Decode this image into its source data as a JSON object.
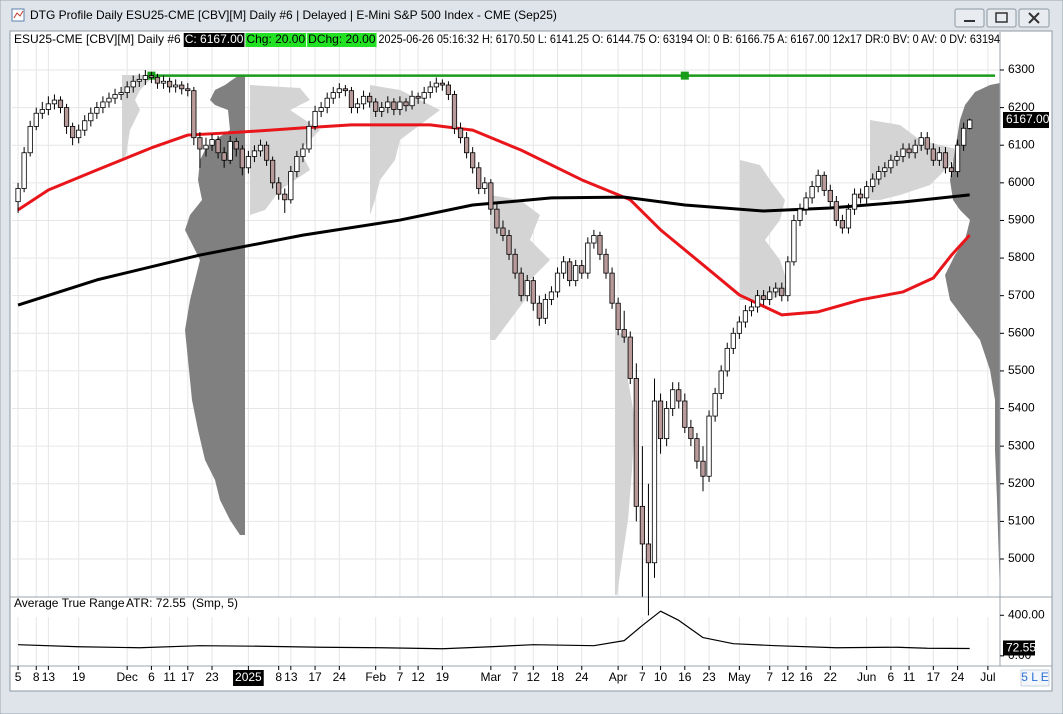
{
  "window": {
    "title": "DTG Profile Daily ESU25-CME [CBV][M]  Daily #6 | Delayed | E-Mini S&P 500 Index - CME (Sep25)",
    "status": "5 L E"
  },
  "header": {
    "symbol": "ESU25-CME [CBV][M]  Daily #6",
    "close": "C: 6167.00",
    "change": "Chg: 20.00",
    "dchange": "DChg: 20.00",
    "details": "2025-06-26 05:16:32 H: 6170.50 L: 6141.25 O: 6144.75 O: 63194 OI: 0 B: 6166.75 A: 6167.00 12x17 DR:0 BV: 0 AV: 0 DV: 63194"
  },
  "chart_data": [
    {
      "type": "candlestick",
      "ylim": [
        4899,
        6393
      ],
      "yticks": [
        6300,
        6200,
        6100,
        6000,
        5900,
        5800,
        5700,
        5600,
        5500,
        5400,
        5300,
        5200,
        5100,
        5000
      ],
      "xlim": [
        -1,
        162
      ],
      "xticks": [
        {
          "value": 0,
          "label": "5"
        },
        {
          "value": 3,
          "label": "8"
        },
        {
          "value": 5,
          "label": "13"
        },
        {
          "value": 10,
          "label": "19"
        },
        {
          "value": 18,
          "label": "Dec"
        },
        {
          "value": 22,
          "label": "6"
        },
        {
          "value": 25,
          "label": "11"
        },
        {
          "value": 28,
          "label": "17"
        },
        {
          "value": 32,
          "label": "23"
        },
        {
          "value": 38,
          "label": "2025",
          "style": "inverse"
        },
        {
          "value": 43,
          "label": "8"
        },
        {
          "value": 45,
          "label": "13"
        },
        {
          "value": 49,
          "label": "17"
        },
        {
          "value": 53,
          "label": "24"
        },
        {
          "value": 59,
          "label": "Feb"
        },
        {
          "value": 63,
          "label": "7"
        },
        {
          "value": 66,
          "label": "12"
        },
        {
          "value": 70,
          "label": "19"
        },
        {
          "value": 78,
          "label": "Mar"
        },
        {
          "value": 82,
          "label": "7"
        },
        {
          "value": 85,
          "label": "12"
        },
        {
          "value": 89,
          "label": "18"
        },
        {
          "value": 93,
          "label": "24"
        },
        {
          "value": 99,
          "label": "Apr"
        },
        {
          "value": 103,
          "label": "7"
        },
        {
          "value": 106,
          "label": "10"
        },
        {
          "value": 110,
          "label": "16"
        },
        {
          "value": 114,
          "label": "23"
        },
        {
          "value": 119,
          "label": "May"
        },
        {
          "value": 124,
          "label": "7"
        },
        {
          "value": 127,
          "label": "12"
        },
        {
          "value": 130,
          "label": "16"
        },
        {
          "value": 134,
          "label": "22"
        },
        {
          "value": 140,
          "label": "Jun"
        },
        {
          "value": 144,
          "label": "6"
        },
        {
          "value": 147,
          "label": "11"
        },
        {
          "value": 151,
          "label": "17"
        },
        {
          "value": 155,
          "label": "24"
        },
        {
          "value": 160,
          "label": "Jul"
        }
      ],
      "grid": true,
      "up_color": "#ffffff",
      "down_color": "#b99a9a",
      "candles": [
        [
          5950,
          6000,
          5920,
          5985
        ],
        [
          5985,
          6095,
          5975,
          6080
        ],
        [
          6080,
          6165,
          6070,
          6150
        ],
        [
          6150,
          6200,
          6140,
          6185
        ],
        [
          6185,
          6215,
          6170,
          6195
        ],
        [
          6195,
          6230,
          6180,
          6210
        ],
        [
          6210,
          6235,
          6195,
          6220
        ],
        [
          6220,
          6230,
          6185,
          6200
        ],
        [
          6200,
          6210,
          6130,
          6150
        ],
        [
          6150,
          6160,
          6100,
          6120
        ],
        [
          6120,
          6155,
          6105,
          6140
        ],
        [
          6140,
          6180,
          6125,
          6165
        ],
        [
          6165,
          6200,
          6150,
          6185
        ],
        [
          6185,
          6215,
          6170,
          6200
        ],
        [
          6200,
          6230,
          6185,
          6215
        ],
        [
          6215,
          6240,
          6200,
          6225
        ],
        [
          6225,
          6250,
          6210,
          6235
        ],
        [
          6235,
          6255,
          6220,
          6240
        ],
        [
          6240,
          6270,
          6225,
          6255
        ],
        [
          6255,
          6285,
          6240,
          6270
        ],
        [
          6270,
          6290,
          6255,
          6275
        ],
        [
          6275,
          6300,
          6260,
          6285
        ],
        [
          6285,
          6295,
          6265,
          6280
        ],
        [
          6280,
          6290,
          6250,
          6265
        ],
        [
          6265,
          6285,
          6250,
          6270
        ],
        [
          6270,
          6280,
          6240,
          6255
        ],
        [
          6255,
          6275,
          6240,
          6260
        ],
        [
          6260,
          6270,
          6235,
          6250
        ],
        [
          6250,
          6265,
          6230,
          6245
        ],
        [
          6245,
          6255,
          6100,
          6120
        ],
        [
          6120,
          6135,
          6040,
          6090
        ],
        [
          6090,
          6120,
          6070,
          6100
        ],
        [
          6100,
          6130,
          6085,
          6115
        ],
        [
          6115,
          6125,
          6065,
          6080
        ],
        [
          6080,
          6095,
          6040,
          6060
        ],
        [
          6060,
          6125,
          6050,
          6110
        ],
        [
          6110,
          6120,
          6070,
          6090
        ],
        [
          6090,
          6100,
          6020,
          6040
        ],
        [
          6040,
          6085,
          6025,
          6070
        ],
        [
          6070,
          6100,
          6055,
          6085
        ],
        [
          6085,
          6115,
          6070,
          6100
        ],
        [
          6100,
          6110,
          6045,
          6060
        ],
        [
          6060,
          6070,
          5985,
          6000
        ],
        [
          6000,
          6015,
          5955,
          5970
        ],
        [
          5970,
          5985,
          5920,
          5955
        ],
        [
          5955,
          6045,
          5945,
          6030
        ],
        [
          6030,
          6085,
          6015,
          6070
        ],
        [
          6070,
          6105,
          6055,
          6090
        ],
        [
          6090,
          6165,
          6080,
          6150
        ],
        [
          6150,
          6205,
          6140,
          6190
        ],
        [
          6190,
          6215,
          6175,
          6200
        ],
        [
          6200,
          6240,
          6185,
          6225
        ],
        [
          6225,
          6255,
          6210,
          6240
        ],
        [
          6240,
          6265,
          6225,
          6250
        ],
        [
          6250,
          6260,
          6230,
          6245
        ],
        [
          6245,
          6255,
          6185,
          6200
        ],
        [
          6200,
          6225,
          6185,
          6210
        ],
        [
          6210,
          6245,
          6195,
          6230
        ],
        [
          6230,
          6240,
          6200,
          6215
        ],
        [
          6215,
          6225,
          6175,
          6190
        ],
        [
          6190,
          6215,
          6175,
          6200
        ],
        [
          6200,
          6230,
          6185,
          6215
        ],
        [
          6215,
          6225,
          6180,
          6195
        ],
        [
          6195,
          6230,
          6180,
          6215
        ],
        [
          6215,
          6225,
          6190,
          6205
        ],
        [
          6205,
          6245,
          6195,
          6230
        ],
        [
          6230,
          6240,
          6210,
          6225
        ],
        [
          6225,
          6255,
          6210,
          6240
        ],
        [
          6240,
          6270,
          6225,
          6255
        ],
        [
          6255,
          6280,
          6240,
          6265
        ],
        [
          6265,
          6275,
          6245,
          6260
        ],
        [
          6260,
          6270,
          6220,
          6235
        ],
        [
          6235,
          6245,
          6130,
          6145
        ],
        [
          6145,
          6160,
          6105,
          6120
        ],
        [
          6120,
          6135,
          6065,
          6080
        ],
        [
          6080,
          6095,
          6025,
          6040
        ],
        [
          6040,
          6055,
          5970,
          5985
        ],
        [
          5985,
          6015,
          5970,
          6000
        ],
        [
          6000,
          6010,
          5915,
          5930
        ],
        [
          5930,
          5945,
          5865,
          5880
        ],
        [
          5880,
          5900,
          5845,
          5860
        ],
        [
          5860,
          5875,
          5795,
          5810
        ],
        [
          5810,
          5825,
          5745,
          5760
        ],
        [
          5760,
          5775,
          5685,
          5700
        ],
        [
          5700,
          5755,
          5685,
          5740
        ],
        [
          5740,
          5750,
          5660,
          5680
        ],
        [
          5680,
          5700,
          5620,
          5640
        ],
        [
          5640,
          5705,
          5625,
          5690
        ],
        [
          5690,
          5725,
          5675,
          5710
        ],
        [
          5710,
          5775,
          5695,
          5760
        ],
        [
          5760,
          5805,
          5745,
          5790
        ],
        [
          5790,
          5800,
          5725,
          5740
        ],
        [
          5740,
          5795,
          5725,
          5780
        ],
        [
          5780,
          5795,
          5745,
          5760
        ],
        [
          5760,
          5855,
          5745,
          5840
        ],
        [
          5840,
          5875,
          5825,
          5860
        ],
        [
          5860,
          5870,
          5795,
          5810
        ],
        [
          5810,
          5825,
          5745,
          5760
        ],
        [
          5760,
          5775,
          5665,
          5680
        ],
        [
          5680,
          5695,
          5595,
          5610
        ],
        [
          5610,
          5660,
          5575,
          5590
        ],
        [
          5590,
          5605,
          5465,
          5480
        ],
        [
          5480,
          5520,
          5100,
          5140
        ],
        [
          5140,
          5300,
          4900,
          5040
        ],
        [
          5040,
          5200,
          4850,
          4990
        ],
        [
          4990,
          5480,
          4950,
          5420
        ],
        [
          5420,
          5440,
          5280,
          5320
        ],
        [
          5320,
          5420,
          5300,
          5400
        ],
        [
          5400,
          5470,
          5380,
          5450
        ],
        [
          5450,
          5470,
          5400,
          5420
        ],
        [
          5420,
          5440,
          5335,
          5350
        ],
        [
          5350,
          5370,
          5300,
          5320
        ],
        [
          5320,
          5335,
          5240,
          5260
        ],
        [
          5260,
          5300,
          5180,
          5220
        ],
        [
          5220,
          5395,
          5205,
          5380
        ],
        [
          5380,
          5455,
          5365,
          5440
        ],
        [
          5440,
          5515,
          5425,
          5500
        ],
        [
          5500,
          5575,
          5485,
          5560
        ],
        [
          5560,
          5615,
          5545,
          5600
        ],
        [
          5600,
          5645,
          5585,
          5630
        ],
        [
          5630,
          5675,
          5615,
          5660
        ],
        [
          5660,
          5685,
          5645,
          5670
        ],
        [
          5670,
          5715,
          5655,
          5700
        ],
        [
          5700,
          5715,
          5675,
          5690
        ],
        [
          5690,
          5725,
          5675,
          5710
        ],
        [
          5710,
          5735,
          5695,
          5720
        ],
        [
          5720,
          5735,
          5685,
          5700
        ],
        [
          5700,
          5805,
          5685,
          5790
        ],
        [
          5790,
          5915,
          5780,
          5900
        ],
        [
          5900,
          5945,
          5885,
          5930
        ],
        [
          5930,
          5975,
          5915,
          5960
        ],
        [
          5960,
          6005,
          5945,
          5990
        ],
        [
          5990,
          6035,
          5975,
          6020
        ],
        [
          6020,
          6030,
          5965,
          5980
        ],
        [
          5980,
          5995,
          5935,
          5950
        ],
        [
          5950,
          5965,
          5885,
          5900
        ],
        [
          5900,
          5915,
          5865,
          5880
        ],
        [
          5880,
          5945,
          5865,
          5930
        ],
        [
          5930,
          5985,
          5915,
          5970
        ],
        [
          5970,
          5985,
          5945,
          5960
        ],
        [
          5960,
          6005,
          5945,
          5990
        ],
        [
          5990,
          6025,
          5975,
          6010
        ],
        [
          6010,
          6045,
          5995,
          6030
        ],
        [
          6030,
          6055,
          6015,
          6040
        ],
        [
          6040,
          6075,
          6025,
          6060
        ],
        [
          6060,
          6085,
          6045,
          6070
        ],
        [
          6070,
          6105,
          6055,
          6090
        ],
        [
          6090,
          6105,
          6065,
          6080
        ],
        [
          6080,
          6115,
          6065,
          6100
        ],
        [
          6100,
          6135,
          6085,
          6120
        ],
        [
          6120,
          6135,
          6075,
          6090
        ],
        [
          6090,
          6105,
          6045,
          6060
        ],
        [
          6060,
          6095,
          6045,
          6080
        ],
        [
          6080,
          6095,
          6025,
          6040
        ],
        [
          6040,
          6055,
          6015,
          6030
        ],
        [
          6030,
          6115,
          6015,
          6100
        ],
        [
          6100,
          6160,
          6085,
          6145
        ],
        [
          6144.75,
          6170.5,
          6141.25,
          6167
        ]
      ],
      "lines": [
        {
          "color": "#e8161b",
          "x": [
            0,
            5,
            13,
            22,
            28,
            35,
            47,
            55,
            68,
            75,
            83,
            93,
            101,
            106,
            113,
            119,
            126,
            132,
            139,
            146,
            151,
            154,
            157
          ],
          "values": [
            5928,
            5981,
            6034,
            6093,
            6127,
            6133,
            6146,
            6154,
            6154,
            6140,
            6087,
            6008,
            5955,
            5875,
            5782,
            5702,
            5649,
            5657,
            5689,
            5710,
            5747,
            5808,
            5861
          ]
        },
        {
          "color": "#000000",
          "x": [
            0,
            13,
            30,
            47,
            63,
            75,
            88,
            100,
            110,
            123,
            134,
            146,
            157
          ],
          "values": [
            5675,
            5742,
            5808,
            5861,
            5901,
            5941,
            5960,
            5962,
            5941,
            5925,
            5933,
            5949,
            5968
          ]
        }
      ],
      "level": {
        "color": "#1a9c1a",
        "x": [
          22,
          110
        ],
        "values": [
          6285,
          6285
        ]
      },
      "last_label": {
        "value": 6167,
        "label": "6167.00"
      }
    },
    {
      "type": "line",
      "title": "Average True Range",
      "value_label": "ATR: 72.55",
      "params": "(Smp, 5)",
      "color": "#000000",
      "ylim": [
        -100,
        580
      ],
      "yticks": [
        {
          "value": 400,
          "label": "400.00"
        },
        {
          "value": 0,
          "label": "0.00"
        }
      ],
      "x": [
        0,
        10,
        20,
        30,
        40,
        50,
        60,
        70,
        78,
        85,
        95,
        100,
        103,
        106,
        109,
        113,
        118,
        125,
        135,
        145,
        150,
        157
      ],
      "values": [
        110,
        90,
        80,
        100,
        95,
        85,
        80,
        70,
        90,
        110,
        100,
        150,
        300,
        440,
        350,
        180,
        120,
        100,
        80,
        85,
        75,
        72.55
      ],
      "last_label": {
        "value": 72.55,
        "label": "72.55"
      }
    }
  ]
}
